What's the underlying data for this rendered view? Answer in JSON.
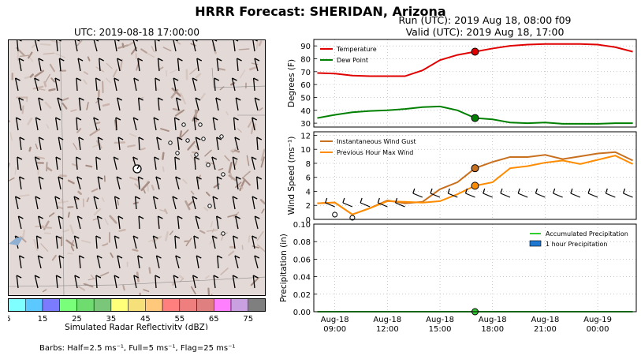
{
  "title": "HRRR Forecast: SHERIDAN, Arizona",
  "run_line": "Run (UTC): 2019 Aug 18, 08:00 f09",
  "valid_line": "Valid (UTC): 2019 Aug 18, 17:00",
  "map": {
    "title": "UTC: 2019-08-18 17:00:00",
    "colorbar_ticks": [
      "5",
      "15",
      "25",
      "35",
      "45",
      "55",
      "65",
      "75"
    ],
    "colorbar_colors": [
      "#7fffff",
      "#5bc8ff",
      "#7b7bff",
      "#7aff7a",
      "#6fdc6f",
      "#7ac77a",
      "#ffff7a",
      "#f5e07a",
      "#ffc87a",
      "#ff7f7f",
      "#ef7f7f",
      "#e07f7f",
      "#ff7fff",
      "#c9a0e0",
      "#7f7f7f"
    ],
    "colorbar_label": "Simulated Radar Reflectivity (dBZ)",
    "barbs_caption": "Barbs: Half=2.5 ms⁻¹, Full=5 ms⁻¹, Flag=25 ms⁻¹"
  },
  "chart_data": [
    {
      "type": "line",
      "ylabel": "Degrees (F)",
      "ylim": [
        27,
        95
      ],
      "yticks": [
        30,
        40,
        50,
        60,
        70,
        80,
        90
      ],
      "legend_position": "top-left",
      "x": [
        0,
        1,
        2,
        3,
        4,
        5,
        6,
        7,
        8,
        9,
        10,
        11,
        12,
        13,
        14,
        15,
        16,
        17,
        18
      ],
      "series": [
        {
          "name": "Temperature",
          "color": "#e00000",
          "values": [
            69,
            68.5,
            67,
            66.5,
            66.5,
            66.5,
            71,
            79,
            83,
            85.5,
            88,
            90,
            91,
            91.5,
            91.5,
            91.5,
            91,
            89,
            85.5
          ]
        },
        {
          "name": "Dew Point",
          "color": "#008000",
          "values": [
            34,
            36.5,
            38.5,
            39.5,
            40,
            41,
            42.5,
            43,
            40,
            34,
            33,
            30.5,
            30,
            30.5,
            29.5,
            29.5,
            29.5,
            30,
            30
          ]
        }
      ],
      "marker_index": 9
    },
    {
      "type": "line",
      "ylabel": "Wind Speed (ms⁻¹)",
      "ylim": [
        0,
        12.5
      ],
      "yticks": [
        0,
        2,
        4,
        6,
        8,
        10,
        12
      ],
      "legend_position": "top-left",
      "x": [
        0,
        1,
        2,
        3,
        4,
        5,
        6,
        7,
        8,
        9,
        10,
        11,
        12,
        13,
        14,
        15,
        16,
        17,
        18
      ],
      "series": [
        {
          "name": "Instantaneous Wind Gust",
          "color": "#c8701e",
          "values": [
            2.3,
            2.4,
            0.7,
            1.6,
            2.7,
            2.3,
            2.5,
            4.3,
            5.3,
            7.3,
            8.2,
            8.9,
            8.9,
            9.2,
            8.6,
            9.0,
            9.4,
            9.6,
            8.4
          ]
        },
        {
          "name": "Previous Hour Max Wind",
          "color": "#ff8c00",
          "values": [
            2.3,
            2.4,
            0.7,
            1.6,
            2.6,
            2.5,
            2.4,
            2.6,
            3.6,
            4.8,
            5.3,
            7.3,
            7.6,
            8.1,
            8.4,
            7.9,
            8.5,
            9.1,
            7.9
          ]
        }
      ],
      "marker_index": 9
    },
    {
      "type": "bar",
      "ylabel": "Precipitation (in)",
      "ylim": [
        0,
        0.1
      ],
      "yticks": [
        "0.00",
        "0.02",
        "0.04",
        "0.06",
        "0.08",
        "0.10"
      ],
      "legend_position": "top-right",
      "x": [
        0,
        1,
        2,
        3,
        4,
        5,
        6,
        7,
        8,
        9,
        10,
        11,
        12,
        13,
        14,
        15,
        16,
        17,
        18
      ],
      "series": [
        {
          "name": "Accumulated Precipitation",
          "color": "#32cd32",
          "values": [
            0,
            0,
            0,
            0,
            0,
            0,
            0,
            0,
            0,
            0,
            0,
            0,
            0,
            0,
            0,
            0,
            0,
            0,
            0
          ]
        },
        {
          "name": "1 hour Precipitation",
          "color": "#1e78d2",
          "values": [
            0,
            0,
            0,
            0,
            0,
            0,
            0,
            0,
            0,
            0,
            0,
            0,
            0,
            0,
            0,
            0,
            0,
            0,
            0
          ]
        }
      ],
      "marker_index": 9,
      "xtick_positions": [
        1,
        4,
        7,
        10,
        13,
        16
      ],
      "xtick_labels": [
        "Aug-18\n09:00",
        "Aug-18\n12:00",
        "Aug-18\n15:00",
        "Aug-18\n18:00",
        "Aug-18\n21:00",
        "Aug-19\n00:00"
      ]
    }
  ]
}
